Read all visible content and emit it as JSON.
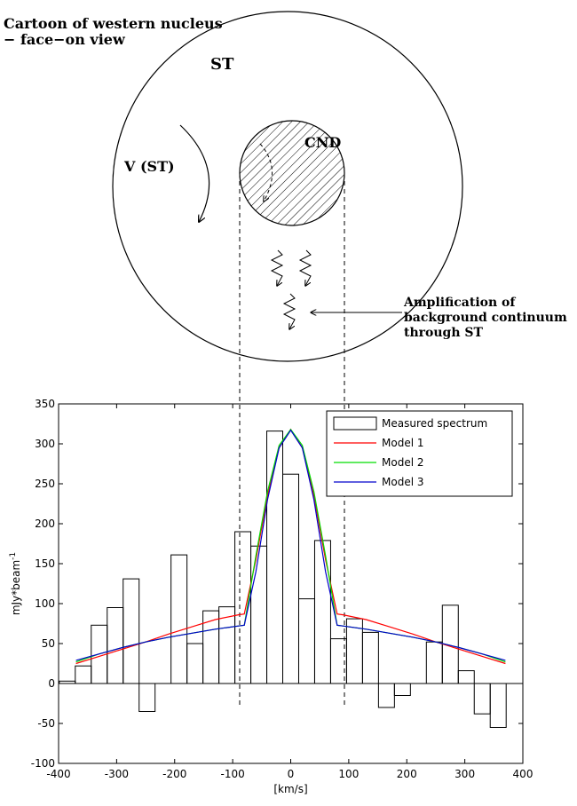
{
  "cartoon": {
    "title_line1": "Cartoon of western nucleus",
    "title_line2": "− face−on view",
    "st_label": "ST",
    "cnd_label": "CND",
    "velocity_label": "V (ST)",
    "amplification_line1": "Amplification of",
    "amplification_line2": "background continuum",
    "amplification_line3": "through ST"
  },
  "chart_data": {
    "type": "bar",
    "xlabel": "[km/s]",
    "ylabel": "mJy*beam",
    "ylabel_superscript": "-1",
    "xlim": [
      -400,
      400
    ],
    "ylim": [
      -100,
      350
    ],
    "xticks": [
      -400,
      -300,
      -200,
      -100,
      0,
      100,
      200,
      300,
      400
    ],
    "yticks": [
      -100,
      -50,
      0,
      50,
      100,
      150,
      200,
      250,
      300,
      350
    ],
    "legend_position": "top-right",
    "measured_spectrum": {
      "name": "Measured spectrum",
      "bin_width": 27.5,
      "x": [
        -385,
        -357.5,
        -330,
        -302.5,
        -275,
        -247.5,
        -220,
        -192.5,
        -165,
        -137.5,
        -110,
        -82.5,
        -55,
        -27.5,
        0,
        27.5,
        55,
        82.5,
        110,
        137.5,
        165,
        192.5,
        220,
        247.5,
        275,
        302.5,
        330,
        357.5,
        385
      ],
      "values": [
        3,
        22,
        73,
        95,
        131,
        -35,
        0,
        161,
        50,
        91,
        96,
        190,
        172,
        316,
        262,
        106,
        179,
        56,
        81,
        64,
        -30,
        -15,
        0,
        52,
        98,
        16,
        -38,
        -55,
        0
      ]
    },
    "models": [
      {
        "name": "Model 1",
        "color": "#ff0000",
        "x": [
          -370,
          -330,
          -290,
          -250,
          -210,
          -170,
          -130,
          -90,
          -80,
          -60,
          -40,
          -20,
          0,
          20,
          40,
          60,
          80,
          90,
          130,
          170,
          210,
          250,
          290,
          330,
          370
        ],
        "y": [
          25,
          34,
          43,
          52,
          62,
          71,
          80,
          86,
          87,
          155,
          235,
          295,
          318,
          295,
          235,
          155,
          87,
          86,
          80,
          71,
          62,
          52,
          43,
          34,
          25
        ]
      },
      {
        "name": "Model 2",
        "color": "#00dd00",
        "x": [
          -370,
          -330,
          -290,
          -250,
          -210,
          -170,
          -130,
          -90,
          -80,
          -60,
          -40,
          -20,
          0,
          20,
          40,
          60,
          80,
          90,
          130,
          170,
          210,
          250,
          290,
          330,
          370
        ],
        "y": [
          27,
          37,
          45,
          52,
          58,
          63,
          68,
          72,
          73,
          160,
          240,
          298,
          318,
          298,
          240,
          160,
          73,
          72,
          68,
          63,
          58,
          52,
          45,
          37,
          27
        ]
      },
      {
        "name": "Model 3",
        "color": "#0000cc",
        "x": [
          -370,
          -330,
          -290,
          -250,
          -210,
          -170,
          -130,
          -90,
          -80,
          -60,
          -40,
          -20,
          0,
          20,
          40,
          60,
          80,
          90,
          130,
          170,
          210,
          250,
          290,
          330,
          370
        ],
        "y": [
          29,
          37,
          45,
          52,
          58,
          63,
          68,
          72,
          73,
          140,
          230,
          295,
          317,
          295,
          230,
          140,
          73,
          72,
          68,
          63,
          58,
          52,
          45,
          37,
          29
        ]
      }
    ]
  }
}
